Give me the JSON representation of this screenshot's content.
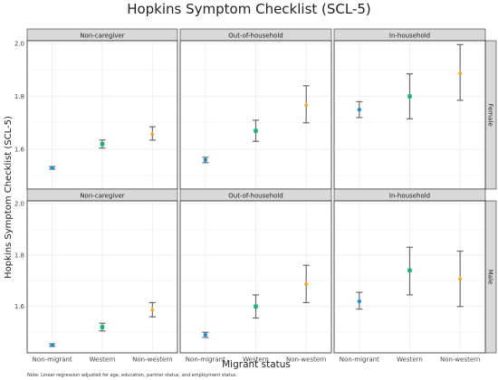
{
  "chart_data": {
    "type": "scatter",
    "subtype": "point-with-errorbars, faceted grid",
    "title": "Hopkins Symptom Checklist (SCL-5)",
    "xlabel": "Migrant status",
    "ylabel": "Hopkins Symptom Checklist (SCL-5)",
    "note": "Note: Linear regression adjusted for age, education, partner status, and employment status.",
    "categories": [
      "Non-migrant",
      "Western",
      "Non-western"
    ],
    "colors": {
      "Non-migrant": "#1f8fce",
      "Western": "#1ab07a",
      "Non-western": "#f5a623",
      "errorbar": "#6b6b6b",
      "strip": "#d9d9d9",
      "grid": "#ebebeb"
    },
    "grid": true,
    "columns": [
      "Non-caregiver",
      "Out-of-household",
      "In-household"
    ],
    "rows": [
      {
        "label": "Female",
        "ylim": [
          1.45,
          2.01
        ],
        "yticks": [
          "1.6",
          "1.8",
          "2.0"
        ],
        "ytick_values": [
          1.6,
          1.8,
          2.0
        ]
      },
      {
        "label": "Male",
        "ylim": [
          1.42,
          2.01
        ],
        "yticks": [
          "1.6",
          "1.8",
          "2.0"
        ],
        "ytick_values": [
          1.6,
          1.8,
          2.0
        ]
      }
    ],
    "panels": [
      {
        "row": "Female",
        "col": "Non-caregiver",
        "points": [
          {
            "x": "Non-migrant",
            "y": 1.53,
            "lo": 1.525,
            "hi": 1.535
          },
          {
            "x": "Western",
            "y": 1.62,
            "lo": 1.605,
            "hi": 1.635
          },
          {
            "x": "Non-western",
            "y": 1.66,
            "lo": 1.635,
            "hi": 1.685
          }
        ]
      },
      {
        "row": "Female",
        "col": "Out-of-household",
        "points": [
          {
            "x": "Non-migrant",
            "y": 1.56,
            "lo": 1.55,
            "hi": 1.57
          },
          {
            "x": "Western",
            "y": 1.67,
            "lo": 1.63,
            "hi": 1.71
          },
          {
            "x": "Non-western",
            "y": 1.77,
            "lo": 1.7,
            "hi": 1.84
          }
        ]
      },
      {
        "row": "Female",
        "col": "In-household",
        "points": [
          {
            "x": "Non-migrant",
            "y": 1.75,
            "lo": 1.72,
            "hi": 1.78
          },
          {
            "x": "Western",
            "y": 1.8,
            "lo": 1.715,
            "hi": 1.885
          },
          {
            "x": "Non-western",
            "y": 1.89,
            "lo": 1.785,
            "hi": 1.995
          }
        ]
      },
      {
        "row": "Male",
        "col": "Non-caregiver",
        "points": [
          {
            "x": "Non-migrant",
            "y": 1.45,
            "lo": 1.445,
            "hi": 1.455
          },
          {
            "x": "Western",
            "y": 1.52,
            "lo": 1.505,
            "hi": 1.535
          },
          {
            "x": "Non-western",
            "y": 1.59,
            "lo": 1.56,
            "hi": 1.615
          }
        ]
      },
      {
        "row": "Male",
        "col": "Out-of-household",
        "points": [
          {
            "x": "Non-migrant",
            "y": 1.49,
            "lo": 1.48,
            "hi": 1.5
          },
          {
            "x": "Western",
            "y": 1.6,
            "lo": 1.555,
            "hi": 1.645
          },
          {
            "x": "Non-western",
            "y": 1.69,
            "lo": 1.615,
            "hi": 1.76
          }
        ]
      },
      {
        "row": "Male",
        "col": "In-household",
        "points": [
          {
            "x": "Non-migrant",
            "y": 1.62,
            "lo": 1.59,
            "hi": 1.655
          },
          {
            "x": "Western",
            "y": 1.74,
            "lo": 1.645,
            "hi": 1.83
          },
          {
            "x": "Non-western",
            "y": 1.71,
            "lo": 1.6,
            "hi": 1.815
          }
        ]
      }
    ]
  }
}
